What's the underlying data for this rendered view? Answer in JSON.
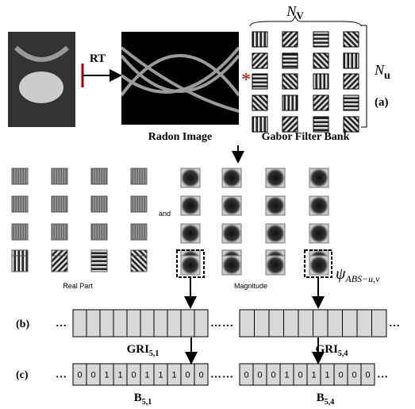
{
  "header": {
    "nv": {
      "main": "N",
      "sub": "V"
    },
    "nu": {
      "main": "N",
      "sub": "u"
    },
    "rt": "RT",
    "star": "*",
    "a": "(a)"
  },
  "captions": {
    "radon": "Radon Image",
    "gabor": "Gabor Filter Bank",
    "and": "and",
    "real": "Real Part",
    "magnitude": "Magnitude",
    "psi": {
      "main": "ψ",
      "sub": "ABS−u,v"
    }
  },
  "dots": "…",
  "row_b": {
    "label": "(b)",
    "left": {
      "main": "GRI",
      "sub": "5,1"
    },
    "right": {
      "main": "GRI",
      "sub": "5,4"
    }
  },
  "row_c": {
    "label": "(c)",
    "left": {
      "main": "B",
      "sub": "5,1",
      "bits": [
        "0",
        "0",
        "1",
        "1",
        "0",
        "1",
        "1",
        "1",
        "0",
        "0"
      ]
    },
    "right": {
      "main": "B",
      "sub": "5,4",
      "bits": [
        "0",
        "0",
        "0",
        "1",
        "0",
        "1",
        "1",
        "0",
        "0",
        "0"
      ]
    }
  }
}
